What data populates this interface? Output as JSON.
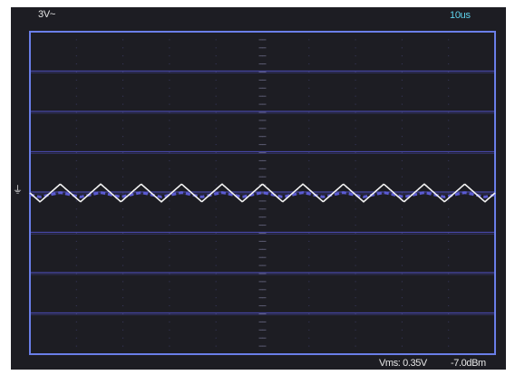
{
  "header": {
    "volt_div": "3V~",
    "time_div": "10us"
  },
  "footer": {
    "vrms": "Vms: 0.35V",
    "power": "-7.0dBm"
  },
  "ground_marker": "⏚",
  "colors": {
    "background": "#1d1d23",
    "frame": "#6a7ee8",
    "grid": "#4a4ab0",
    "trace": "#f2f2f2",
    "trace_shadow": "#6060e0",
    "timebase": "#5fd4ee"
  },
  "waveform": {
    "shape": "triangle",
    "cycles": 11.5,
    "amplitude_div": 0.22,
    "offset_div": 0
  }
}
